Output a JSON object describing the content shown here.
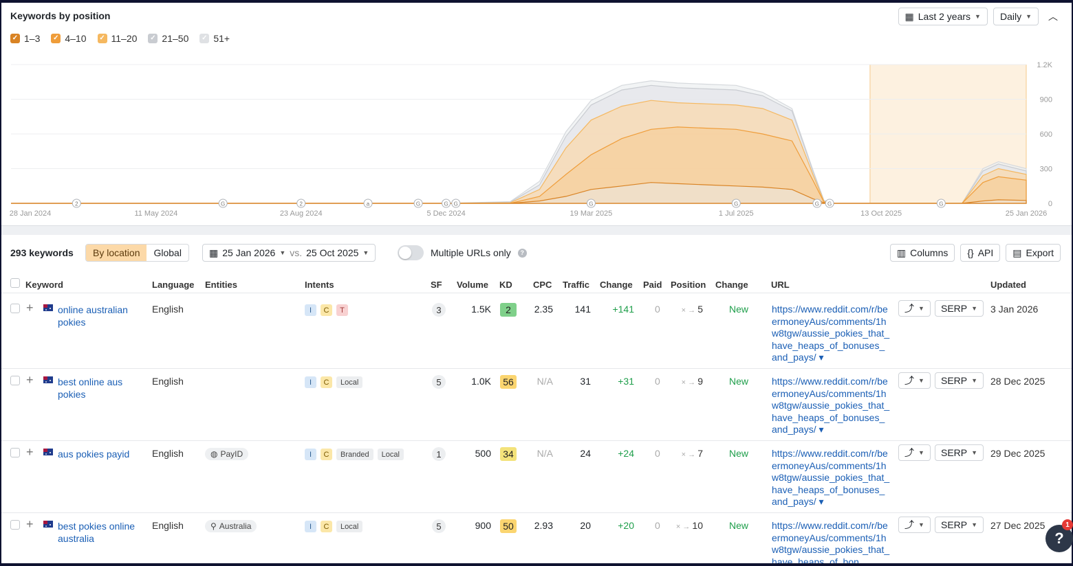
{
  "chart": {
    "title": "Keywords by position",
    "legend": [
      {
        "label": "1–3",
        "color": "#d98324",
        "checked": true
      },
      {
        "label": "4–10",
        "color": "#ef9d3a",
        "checked": true
      },
      {
        "label": "11–20",
        "color": "#f5b860",
        "checked": true
      },
      {
        "label": "21–50",
        "color": "#c9ccd1",
        "checked": true
      },
      {
        "label": "51+",
        "color": "#dfe1e4",
        "checked": true
      }
    ],
    "range_label": "Last 2 years",
    "interval_label": "Daily",
    "x_ticks": [
      "28 Jan 2024",
      "11 May 2024",
      "23 Aug 2024",
      "5 Dec 2024",
      "19 Mar 2025",
      "1 Jul 2025",
      "13 Oct 2025",
      "25 Jan 2026"
    ],
    "y_ticks": [
      "1.2K",
      "900",
      "600",
      "300",
      "0"
    ],
    "markers": [
      "2",
      "G",
      "2",
      "a",
      "G",
      "G",
      "G",
      "G",
      "G",
      "G",
      "G",
      "G"
    ]
  },
  "chart_data": {
    "type": "area",
    "x": [
      "2024-01-28",
      "2024-05-11",
      "2024-08-23",
      "2024-12-05",
      "2025-01-20",
      "2025-02-10",
      "2025-03-01",
      "2025-03-19",
      "2025-04-10",
      "2025-05-01",
      "2025-05-20",
      "2025-06-10",
      "2025-07-01",
      "2025-07-20",
      "2025-08-10",
      "2025-08-25",
      "2025-09-02",
      "2025-09-10",
      "2025-10-13",
      "2025-12-10",
      "2025-12-25",
      "2026-01-05",
      "2026-01-25"
    ],
    "series": [
      {
        "name": "1–3",
        "values": [
          0,
          0,
          0,
          0,
          0,
          20,
          60,
          120,
          150,
          180,
          170,
          160,
          150,
          140,
          120,
          40,
          5,
          0,
          0,
          0,
          20,
          30,
          25
        ]
      },
      {
        "name": "4–10",
        "values": [
          0,
          0,
          0,
          0,
          0,
          60,
          250,
          420,
          560,
          640,
          660,
          650,
          640,
          600,
          540,
          200,
          10,
          0,
          0,
          0,
          180,
          230,
          200
        ]
      },
      {
        "name": "11–20",
        "values": [
          0,
          0,
          0,
          0,
          5,
          120,
          480,
          720,
          840,
          890,
          870,
          860,
          850,
          820,
          720,
          250,
          15,
          0,
          0,
          0,
          240,
          300,
          250
        ]
      },
      {
        "name": "21–50",
        "values": [
          0,
          0,
          0,
          0,
          10,
          160,
          580,
          850,
          980,
          1020,
          1000,
          990,
          980,
          930,
          800,
          280,
          20,
          0,
          0,
          0,
          280,
          340,
          280
        ]
      },
      {
        "name": "51+",
        "values": [
          0,
          0,
          0,
          0,
          15,
          190,
          620,
          890,
          1020,
          1060,
          1040,
          1030,
          1020,
          960,
          820,
          290,
          25,
          0,
          0,
          0,
          300,
          360,
          300
        ]
      }
    ],
    "ylim": [
      0,
      1200
    ]
  },
  "toolbar": {
    "count": "293 keywords",
    "by_location": "By location",
    "global": "Global",
    "date_a": "25 Jan 2026",
    "vs": "vs.",
    "date_b": "25 Oct 2025",
    "multiple_urls": "Multiple URLs only",
    "columns": "Columns",
    "api": "API",
    "export": "Export"
  },
  "headers": {
    "keyword": "Keyword",
    "language": "Language",
    "entities": "Entities",
    "intents": "Intents",
    "sf": "SF",
    "volume": "Volume",
    "kd": "KD",
    "cpc": "CPC",
    "traffic": "Traffic",
    "change": "Change",
    "paid": "Paid",
    "position": "Position",
    "change2": "Change",
    "url": "URL",
    "updated": "Updated"
  },
  "rows": [
    {
      "keyword": "online australian pokies",
      "language": "English",
      "entity": "",
      "intents": [
        "I",
        "C",
        "T"
      ],
      "sf": "3",
      "volume": "1.5K",
      "kd": "2",
      "kd_color": "#7fd08a",
      "cpc": "2.35",
      "traffic": "141",
      "change": "+141",
      "paid": "0",
      "pos_from": "×",
      "pos_to": "5",
      "status": "New",
      "url": "https://www.reddit.com/r/beermoneyAus/comments/1hw8tgw/aussie_pokies_that_have_heaps_of_bonuses_and_pays/ ▾",
      "serp": "SERP",
      "updated": "3 Jan 2026"
    },
    {
      "keyword": "best online aus pokies",
      "language": "English",
      "entity": "",
      "intents": [
        "I",
        "C",
        "Local"
      ],
      "sf": "5",
      "volume": "1.0K",
      "kd": "56",
      "kd_color": "#fbd570",
      "cpc": "N/A",
      "traffic": "31",
      "change": "+31",
      "paid": "0",
      "pos_from": "×",
      "pos_to": "9",
      "status": "New",
      "url": "https://www.reddit.com/r/beermoneyAus/comments/1hw8tgw/aussie_pokies_that_have_heaps_of_bonuses_and_pays/ ▾",
      "serp": "SERP",
      "updated": "28 Dec 2025"
    },
    {
      "keyword": "aus pokies payid",
      "language": "English",
      "entity": "PayID",
      "intents": [
        "I",
        "C",
        "Branded",
        "Local"
      ],
      "sf": "1",
      "volume": "500",
      "kd": "34",
      "kd_color": "#f3e27a",
      "cpc": "N/A",
      "traffic": "24",
      "change": "+24",
      "paid": "0",
      "pos_from": "×",
      "pos_to": "7",
      "status": "New",
      "url": "https://www.reddit.com/r/beermoneyAus/comments/1hw8tgw/aussie_pokies_that_have_heaps_of_bonuses_and_pays/ ▾",
      "serp": "SERP",
      "updated": "29 Dec 2025"
    },
    {
      "keyword": "best pokies online australia",
      "language": "English",
      "entity": "Australia",
      "intents": [
        "I",
        "C",
        "Local"
      ],
      "sf": "5",
      "volume": "900",
      "kd": "50",
      "kd_color": "#fbd570",
      "cpc": "2.93",
      "traffic": "20",
      "change": "+20",
      "paid": "0",
      "pos_from": "×",
      "pos_to": "10",
      "status": "New",
      "url": "https://www.reddit.com/r/beermoneyAus/comments/1hw8tgw/aussie_pokies_that_have_heaps_of_bon",
      "serp": "SERP",
      "updated": "27 Dec 2025"
    }
  ],
  "fab": {
    "label": "?",
    "badge": "1"
  }
}
